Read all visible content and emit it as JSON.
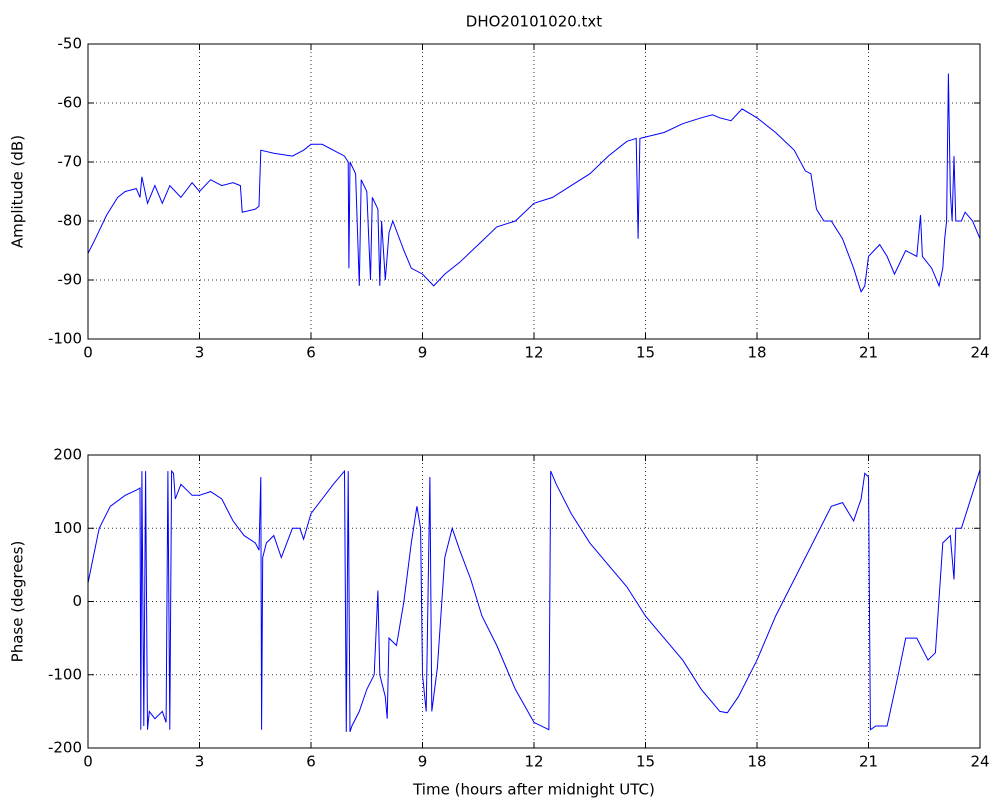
{
  "chart_data": [
    {
      "type": "line",
      "title": "DHO20101020.txt",
      "y_label": "Amplitude (dB)",
      "color": "#0000ff",
      "grid": true,
      "xlim": [
        0,
        24
      ],
      "xticks": [
        0,
        3,
        6,
        9,
        12,
        15,
        18,
        21,
        24
      ],
      "ylim": [
        -100,
        -50
      ],
      "yticks": [
        -100,
        -90,
        -80,
        -70,
        -60,
        -50
      ],
      "x": [
        0,
        0.2,
        0.5,
        0.8,
        1.0,
        1.3,
        1.4,
        1.45,
        1.6,
        1.8,
        2.0,
        2.2,
        2.5,
        2.8,
        3.0,
        3.3,
        3.6,
        3.9,
        4.1,
        4.15,
        4.5,
        4.6,
        4.65,
        5.0,
        5.5,
        5.8,
        6.0,
        6.3,
        6.6,
        6.9,
        7.0,
        7.02,
        7.05,
        7.2,
        7.3,
        7.35,
        7.5,
        7.6,
        7.65,
        7.8,
        7.85,
        7.9,
        8.0,
        8.1,
        8.2,
        8.5,
        8.7,
        9.0,
        9.3,
        9.6,
        10.0,
        10.5,
        11.0,
        11.5,
        12.0,
        12.5,
        13.0,
        13.5,
        14.0,
        14.5,
        14.75,
        14.8,
        14.85,
        15.5,
        16.0,
        16.5,
        16.8,
        17.0,
        17.3,
        17.6,
        18.0,
        18.5,
        19.0,
        19.3,
        19.45,
        19.6,
        19.8,
        20.0,
        20.3,
        20.6,
        20.8,
        20.9,
        21.0,
        21.3,
        21.5,
        21.7,
        22.0,
        22.3,
        22.4,
        22.45,
        22.7,
        22.9,
        23.0,
        23.05,
        23.1,
        23.15,
        23.2,
        23.25,
        23.3,
        23.35,
        23.5,
        23.6,
        23.8,
        24.0
      ],
      "values": [
        -85.5,
        -83,
        -79,
        -76,
        -75,
        -74.5,
        -76,
        -72.5,
        -77,
        -74,
        -77,
        -74,
        -76,
        -73.5,
        -75,
        -73,
        -74,
        -73.5,
        -74,
        -78.5,
        -78,
        -77.5,
        -68,
        -68.5,
        -69,
        -68,
        -67,
        -67,
        -68,
        -69,
        -70,
        -88,
        -70,
        -72,
        -91,
        -73,
        -75,
        -90,
        -76,
        -78,
        -91,
        -80,
        -90,
        -82,
        -80,
        -85,
        -88,
        -89,
        -91,
        -89,
        -87,
        -84,
        -81,
        -80,
        -77,
        -76,
        -74,
        -72,
        -69,
        -66.5,
        -66,
        -83,
        -66,
        -65,
        -63.5,
        -62.5,
        -62,
        -62.5,
        -63,
        -61,
        -62.5,
        -65,
        -68,
        -71.5,
        -72,
        -78,
        -80,
        -80,
        -83,
        -88,
        -92,
        -91,
        -86,
        -84,
        -86,
        -89,
        -85,
        -86,
        -79,
        -86,
        -88,
        -91,
        -88,
        -83,
        -80,
        -55,
        -75,
        -80,
        -69,
        -80,
        -80,
        -78.5,
        -80,
        -83
      ]
    },
    {
      "type": "line",
      "x_label": "Time (hours after midnight UTC)",
      "y_label": "Phase (degrees)",
      "color": "#0000ff",
      "grid": true,
      "xlim": [
        0,
        24
      ],
      "xticks": [
        0,
        3,
        6,
        9,
        12,
        15,
        18,
        21,
        24
      ],
      "ylim": [
        -200,
        200
      ],
      "yticks": [
        -200,
        -100,
        0,
        100,
        200
      ],
      "x": [
        0,
        0.1,
        0.3,
        0.6,
        1.0,
        1.3,
        1.4,
        1.42,
        1.45,
        1.5,
        1.55,
        1.6,
        1.65,
        1.8,
        2.0,
        2.1,
        2.15,
        2.2,
        2.25,
        2.3,
        2.35,
        2.5,
        2.8,
        3.0,
        3.3,
        3.6,
        3.9,
        4.2,
        4.5,
        4.6,
        4.65,
        4.67,
        4.7,
        4.8,
        5.0,
        5.2,
        5.5,
        5.7,
        5.8,
        6.0,
        6.3,
        6.6,
        6.9,
        6.95,
        7.0,
        7.05,
        7.1,
        7.3,
        7.5,
        7.7,
        7.8,
        7.85,
        8.0,
        8.05,
        8.1,
        8.3,
        8.5,
        8.7,
        8.85,
        8.95,
        9.0,
        9.1,
        9.2,
        9.25,
        9.4,
        9.6,
        9.8,
        10.0,
        10.3,
        10.6,
        11.0,
        11.5,
        12.0,
        12.4,
        12.45,
        12.6,
        13.0,
        13.5,
        14.0,
        14.5,
        15.0,
        15.5,
        16.0,
        16.5,
        17.0,
        17.2,
        17.5,
        18.0,
        18.5,
        19.0,
        19.5,
        20.0,
        20.3,
        20.6,
        20.8,
        20.9,
        21.0,
        21.05,
        21.2,
        21.5,
        21.8,
        22.0,
        22.3,
        22.6,
        22.8,
        23.0,
        23.2,
        23.3,
        23.35,
        23.5,
        24.0
      ],
      "values": [
        25,
        50,
        100,
        130,
        145,
        152,
        155,
        -175,
        178,
        -170,
        178,
        -175,
        -150,
        -160,
        -150,
        -165,
        178,
        -175,
        178,
        175,
        140,
        160,
        145,
        145,
        150,
        140,
        110,
        90,
        80,
        70,
        170,
        -175,
        60,
        80,
        90,
        60,
        100,
        100,
        85,
        120,
        140,
        160,
        178,
        -178,
        178,
        -178,
        -170,
        -150,
        -120,
        -100,
        15,
        -100,
        -130,
        -160,
        -50,
        -60,
        0,
        80,
        130,
        100,
        -100,
        -150,
        170,
        -150,
        -90,
        60,
        100,
        70,
        30,
        -20,
        -60,
        -120,
        -165,
        -175,
        178,
        160,
        120,
        80,
        50,
        20,
        -20,
        -50,
        -80,
        -120,
        -150,
        -152,
        -130,
        -80,
        -20,
        30,
        80,
        130,
        135,
        110,
        140,
        175,
        170,
        -175,
        -170,
        -170,
        -100,
        -50,
        -50,
        -80,
        -70,
        80,
        90,
        30,
        100,
        100,
        180
      ]
    }
  ]
}
